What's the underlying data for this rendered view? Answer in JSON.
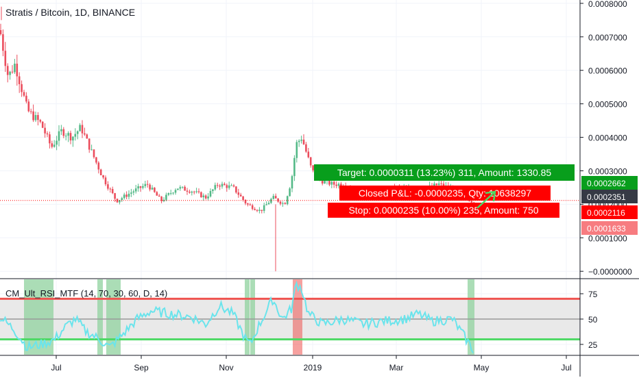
{
  "chart_title": "Stratis / Bitcoin, 1D, BINANCE",
  "indicator": {
    "label": "CM_Ult_RSI_MTF (14, 70, 30, 60, D, 14)",
    "yticks": [
      "75",
      "50",
      "25"
    ],
    "upper_band": 70,
    "lower_band": 30,
    "mid_line": 50
  },
  "colors": {
    "up": "#26a69a",
    "candle_up": "#53b987",
    "candle_down": "#eb4d5c",
    "rsi_line": "#6ae4ec",
    "band_upper": "#ef5350",
    "band_lower": "#4cd964",
    "target_box": "#089e1c",
    "stop_box": "#ff0000",
    "badge_green": "#089e1c",
    "badge_dark": "#363a45",
    "badge_red": "#ff0000",
    "badge_pink": "#f77c80"
  },
  "chart_data": {
    "type": "candlestick",
    "ylim": [
      -2e-05,
      0.00081
    ],
    "yticks": [
      "0.0008000",
      "0.0007000",
      "0.0006000",
      "0.0005000",
      "0.0004000",
      "0.0003000",
      "0.0002000",
      "0.0001000",
      "−0.0000000"
    ],
    "xticks": [
      "Jul",
      "Sep",
      "Nov",
      "2019",
      "Mar",
      "May",
      "Jul"
    ],
    "price_badges": [
      {
        "label": "0.0002662",
        "value": 0.0002662,
        "style": "green"
      },
      {
        "label": "0.0002351",
        "value": 0.0002351,
        "style": "dark"
      },
      {
        "label": "0.0002116",
        "value": 0.0002116,
        "style": "red"
      },
      {
        "label": "0.0001633",
        "value": 0.0001633,
        "style": "pink"
      }
    ],
    "trade_boxes": {
      "target": "Target: 0.0000311 (13.23%) 311, Amount: 1330.85",
      "closed": "Closed P&L: -0.0000235, Qty: 10638297",
      "stop": "Stop: 0.0000235 (10.00%) 235, Amount: 750"
    }
  }
}
